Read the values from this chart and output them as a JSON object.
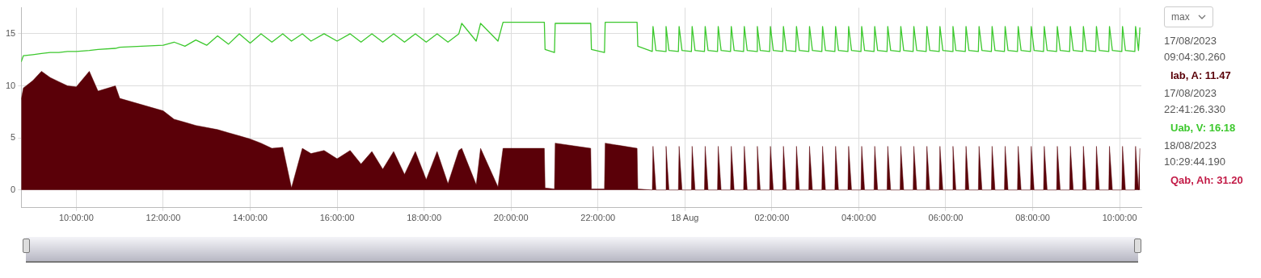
{
  "chart_data": {
    "type": "line",
    "x": [
      "2023-08-17T08:44",
      "2023-08-17T08:47",
      "2023-08-17T09:00",
      "2023-08-17T09:12",
      "2023-08-17T09:24",
      "2023-08-17T09:36",
      "2023-08-17T09:48",
      "2023-08-17T10:00",
      "2023-08-17T10:18",
      "2023-08-17T10:30",
      "2023-08-17T10:54",
      "2023-08-17T11:00",
      "2023-08-17T11:30",
      "2023-08-17T12:00",
      "2023-08-17T12:15",
      "2023-08-17T12:30",
      "2023-08-17T12:45",
      "2023-08-17T13:00",
      "2023-08-17T13:15",
      "2023-08-17T13:30",
      "2023-08-17T13:45",
      "2023-08-17T14:00",
      "2023-08-17T14:15",
      "2023-08-17T14:30",
      "2023-08-17T14:45",
      "2023-08-17T14:57",
      "2023-08-17T15:12",
      "2023-08-17T15:24",
      "2023-08-17T15:42",
      "2023-08-17T16:00",
      "2023-08-17T16:18",
      "2023-08-17T16:33",
      "2023-08-17T16:48",
      "2023-08-17T17:03",
      "2023-08-17T17:18",
      "2023-08-17T17:33",
      "2023-08-17T17:48",
      "2023-08-17T18:03",
      "2023-08-17T18:18",
      "2023-08-17T18:33",
      "2023-08-17T18:48",
      "2023-08-17T18:52",
      "2023-08-17T19:12",
      "2023-08-17T19:18",
      "2023-08-17T19:42",
      "2023-08-17T19:49",
      "2023-08-17T20:46",
      "2023-08-17T20:47",
      "2023-08-17T21:00",
      "2023-08-17T21:01",
      "2023-08-17T21:50",
      "2023-08-17T21:51",
      "2023-08-17T22:09",
      "2023-08-17T22:10",
      "2023-08-17T22:54",
      "2023-08-17T22:55",
      "2023-08-17T23:15",
      "2023-08-17T23:16",
      "2023-08-17T23:20",
      "2023-08-17T23:33",
      "2023-08-17T23:34",
      "2023-08-17T23:38",
      "2023-08-17T23:51",
      "2023-08-17T23:52",
      "2023-08-17T23:56",
      "2023-08-18T00:09",
      "2023-08-18T00:10",
      "2023-08-18T00:14",
      "2023-08-18T00:27",
      "2023-08-18T00:28",
      "2023-08-18T00:32",
      "2023-08-18T00:45",
      "2023-08-18T00:46",
      "2023-08-18T00:50",
      "2023-08-18T01:03",
      "2023-08-18T01:04",
      "2023-08-18T01:08",
      "2023-08-18T01:21",
      "2023-08-18T01:22",
      "2023-08-18T01:26",
      "2023-08-18T01:39",
      "2023-08-18T01:40",
      "2023-08-18T01:44",
      "2023-08-18T01:57",
      "2023-08-18T01:58",
      "2023-08-18T02:02",
      "2023-08-18T02:15",
      "2023-08-18T02:16",
      "2023-08-18T02:20",
      "2023-08-18T02:33",
      "2023-08-18T02:34",
      "2023-08-18T02:38",
      "2023-08-18T02:51",
      "2023-08-18T02:52",
      "2023-08-18T02:56",
      "2023-08-18T03:09",
      "2023-08-18T03:10",
      "2023-08-18T03:14",
      "2023-08-18T03:27",
      "2023-08-18T03:28",
      "2023-08-18T03:32",
      "2023-08-18T03:45",
      "2023-08-18T03:46",
      "2023-08-18T03:50",
      "2023-08-18T04:03",
      "2023-08-18T04:04",
      "2023-08-18T04:08",
      "2023-08-18T04:21",
      "2023-08-18T04:22",
      "2023-08-18T04:26",
      "2023-08-18T04:39",
      "2023-08-18T04:40",
      "2023-08-18T04:44",
      "2023-08-18T04:57",
      "2023-08-18T04:58",
      "2023-08-18T05:02",
      "2023-08-18T05:15",
      "2023-08-18T05:16",
      "2023-08-18T05:20",
      "2023-08-18T05:33",
      "2023-08-18T05:34",
      "2023-08-18T05:38",
      "2023-08-18T05:51",
      "2023-08-18T05:52",
      "2023-08-18T05:56",
      "2023-08-18T06:09",
      "2023-08-18T06:10",
      "2023-08-18T06:14",
      "2023-08-18T06:27",
      "2023-08-18T06:28",
      "2023-08-18T06:32",
      "2023-08-18T06:45",
      "2023-08-18T06:46",
      "2023-08-18T06:50",
      "2023-08-18T07:03",
      "2023-08-18T07:04",
      "2023-08-18T07:08",
      "2023-08-18T07:21",
      "2023-08-18T07:22",
      "2023-08-18T07:26",
      "2023-08-18T07:39",
      "2023-08-18T07:40",
      "2023-08-18T07:44",
      "2023-08-18T07:57",
      "2023-08-18T07:58",
      "2023-08-18T08:02",
      "2023-08-18T08:15",
      "2023-08-18T08:16",
      "2023-08-18T08:20",
      "2023-08-18T08:33",
      "2023-08-18T08:34",
      "2023-08-18T08:38",
      "2023-08-18T08:51",
      "2023-08-18T08:52",
      "2023-08-18T08:56",
      "2023-08-18T09:09",
      "2023-08-18T09:10",
      "2023-08-18T09:14",
      "2023-08-18T09:27",
      "2023-08-18T09:28",
      "2023-08-18T09:32",
      "2023-08-18T09:45",
      "2023-08-18T09:46",
      "2023-08-18T09:50",
      "2023-08-18T10:03",
      "2023-08-18T10:04",
      "2023-08-18T10:08",
      "2023-08-18T10:21",
      "2023-08-18T10:22",
      "2023-08-18T10:26",
      "2023-08-18T10:28"
    ],
    "series": [
      {
        "type": "area",
        "color": "#5a0008",
        "values": [
          8.7,
          9.8,
          10.5,
          11.4,
          10.8,
          10.4,
          10.0,
          9.9,
          11.4,
          9.5,
          10.0,
          8.8,
          8.2,
          7.6,
          6.8,
          6.5,
          6.2,
          6.0,
          5.8,
          5.5,
          5.2,
          4.9,
          4.5,
          4.0,
          4.1,
          0.2,
          4.0,
          3.5,
          3.8,
          3.0,
          3.8,
          2.5,
          3.7,
          2.0,
          3.7,
          1.5,
          3.7,
          1.0,
          3.7,
          0.6,
          3.8,
          4.0,
          0.5,
          4.0,
          0.3,
          4.0,
          4.0,
          0.2,
          0.1,
          4.5,
          4.0,
          0.1,
          0.1,
          4.5,
          4.0,
          0.1,
          0,
          4.2,
          0,
          0,
          4.2,
          0,
          0,
          4.2,
          0,
          0,
          4.2,
          0,
          0,
          4.2,
          0,
          0,
          4.2,
          0,
          0,
          4.2,
          0,
          0,
          4.2,
          0,
          0,
          4.2,
          0,
          0,
          4.2,
          0,
          0,
          4.2,
          0,
          0,
          4.2,
          0,
          0,
          4.2,
          0,
          0,
          4.2,
          0,
          0,
          4.2,
          0,
          0,
          4.2,
          0,
          0,
          4.2,
          0,
          0,
          4.2,
          0,
          0,
          4.2,
          0,
          0,
          4.2,
          0,
          0,
          4.2,
          0,
          0,
          4.2,
          0,
          0,
          4.2,
          0,
          0,
          4.2,
          0,
          0,
          4.2,
          0,
          0,
          4.2,
          0,
          0,
          4.2,
          0,
          0,
          4.2,
          0,
          0,
          4.2,
          0,
          0,
          4.2,
          0,
          0,
          4.2,
          0,
          0,
          4.2,
          0,
          0,
          4.2,
          0,
          0,
          4.2,
          0,
          0,
          4.2,
          0,
          0,
          4.2,
          0,
          0,
          4.2,
          0,
          0,
          4.2,
          0,
          4.0
        ]
      },
      {
        "type": "line",
        "color": "#3cc82d",
        "values": [
          12.3,
          12.9,
          13.0,
          13.1,
          13.2,
          13.2,
          13.3,
          13.3,
          13.4,
          13.5,
          13.6,
          13.7,
          13.8,
          13.9,
          14.2,
          13.8,
          14.4,
          13.9,
          14.8,
          14.0,
          15.0,
          14.1,
          15.0,
          14.2,
          15.0,
          14.3,
          15.0,
          14.3,
          15.0,
          14.3,
          15.0,
          14.2,
          15.0,
          14.2,
          15.0,
          14.2,
          15.0,
          14.2,
          15.0,
          14.2,
          15.0,
          16.0,
          14.3,
          16.0,
          14.3,
          16.1,
          16.1,
          13.5,
          13.2,
          16.0,
          16.0,
          13.5,
          13.2,
          16.1,
          16.1,
          13.8,
          13.3,
          15.7,
          13.4,
          13.3,
          15.7,
          13.4,
          13.3,
          15.7,
          13.4,
          13.3,
          15.7,
          13.4,
          13.3,
          15.7,
          13.4,
          13.3,
          15.7,
          13.4,
          13.3,
          15.7,
          13.4,
          13.3,
          15.7,
          13.4,
          13.3,
          15.7,
          13.4,
          13.3,
          15.7,
          13.4,
          13.3,
          15.7,
          13.4,
          13.3,
          15.7,
          13.4,
          13.3,
          15.7,
          13.4,
          13.3,
          15.7,
          13.4,
          13.3,
          15.7,
          13.4,
          13.3,
          15.7,
          13.4,
          13.3,
          15.7,
          13.4,
          13.3,
          15.7,
          13.4,
          13.3,
          15.7,
          13.4,
          13.3,
          15.7,
          13.4,
          13.3,
          15.7,
          13.4,
          13.3,
          15.7,
          13.4,
          13.3,
          15.7,
          13.4,
          13.3,
          15.7,
          13.4,
          13.3,
          15.7,
          13.4,
          13.3,
          15.7,
          13.4,
          13.3,
          15.7,
          13.4,
          13.3,
          15.7,
          13.4,
          13.3,
          15.7,
          13.4,
          13.3,
          15.7,
          13.4,
          13.3,
          15.7,
          13.4,
          13.3,
          15.7,
          13.4,
          13.3,
          15.7,
          13.4,
          13.3,
          15.7,
          13.4,
          13.3,
          15.7,
          13.4,
          13.3,
          15.7,
          13.4,
          13.3,
          15.7,
          13.4,
          13.3,
          15.7,
          13.4,
          15.6
        ]
      }
    ],
    "xlim": [
      "2023-08-17T08:44",
      "2023-08-18T10:30"
    ],
    "xticks": [
      {
        "value": "2023-08-17T10:00",
        "label": "10:00:00"
      },
      {
        "value": "2023-08-17T12:00",
        "label": "12:00:00"
      },
      {
        "value": "2023-08-17T14:00",
        "label": "14:00:00"
      },
      {
        "value": "2023-08-17T16:00",
        "label": "16:00:00"
      },
      {
        "value": "2023-08-17T18:00",
        "label": "18:00:00"
      },
      {
        "value": "2023-08-17T20:00",
        "label": "20:00:00"
      },
      {
        "value": "2023-08-17T22:00",
        "label": "22:00:00"
      },
      {
        "value": "2023-08-18T00:00",
        "label": "18 Aug"
      },
      {
        "value": "2023-08-18T02:00",
        "label": "02:00:00"
      },
      {
        "value": "2023-08-18T04:00",
        "label": "04:00:00"
      },
      {
        "value": "2023-08-18T06:00",
        "label": "06:00:00"
      },
      {
        "value": "2023-08-18T08:00",
        "label": "08:00:00"
      },
      {
        "value": "2023-08-18T10:00",
        "label": "10:00:00"
      }
    ],
    "ylim": [
      -1.7,
      17.5
    ],
    "yticks": [
      0,
      5,
      10,
      15
    ],
    "grid": true,
    "marker": "none",
    "annotations": [
      "max",
      "17/08/2023",
      "09:04:30.260",
      "Iab, A: 11.47",
      "17/08/2023",
      "22:41:26.330",
      "Uab, V: 16.18",
      "18/08/2023",
      "10:29:44.190",
      "Qab, Ah: 31.20"
    ]
  }
}
